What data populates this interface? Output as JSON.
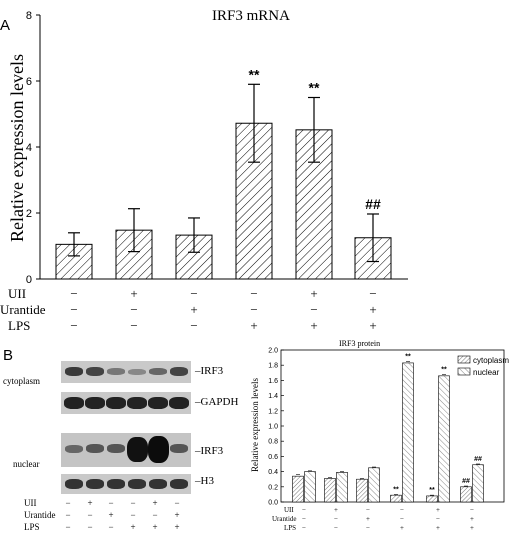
{
  "panel_a": {
    "letter": "A",
    "title": "IRF3 mRNA",
    "ylabel": "Relative expression levels",
    "yticks": [
      "0",
      "2",
      "4",
      "6",
      "8"
    ],
    "treatments": [
      {
        "label": "UII",
        "signs": [
          "−",
          "+",
          "−",
          "−",
          "+",
          "−"
        ]
      },
      {
        "label": "Urantide",
        "signs": [
          "−",
          "−",
          "+",
          "−",
          "−",
          "+"
        ]
      },
      {
        "label": "LPS",
        "signs": [
          "−",
          "−",
          "−",
          "+",
          "+",
          "+"
        ]
      }
    ],
    "significance": [
      "",
      "",
      "",
      "**",
      "**",
      "##"
    ]
  },
  "panel_b": {
    "letter": "B",
    "blot": {
      "row_labels": [
        "cytoplasm",
        "nuclear"
      ],
      "band_labels": [
        "–IRF3",
        "–GAPDH",
        "–IRF3",
        "–H3"
      ],
      "treatments": [
        {
          "label": "UII",
          "signs": [
            "−",
            "+",
            "−",
            "−",
            "+",
            "−"
          ]
        },
        {
          "label": "Urantide",
          "signs": [
            "−",
            "−",
            "+",
            "−",
            "−",
            "+"
          ]
        },
        {
          "label": "LPS",
          "signs": [
            "−",
            "−",
            "−",
            "+",
            "+",
            "+"
          ]
        }
      ]
    },
    "chart_title": "IRF3 protein",
    "ylabel": "Relative expression levels",
    "yticks": [
      "0.0",
      "0.2",
      "0.4",
      "0.6",
      "0.8",
      "1.0",
      "1.2",
      "1.4",
      "1.6",
      "1.8",
      "2.0"
    ],
    "legend": [
      "cytoplasm",
      "nuclear"
    ],
    "treatments": [
      {
        "label": "UII",
        "signs": [
          "−",
          "+",
          "−",
          "−",
          "+",
          "−"
        ]
      },
      {
        "label": "Urantide",
        "signs": [
          "−",
          "−",
          "+",
          "−",
          "−",
          "+"
        ]
      },
      {
        "label": "LPS",
        "signs": [
          "−",
          "−",
          "−",
          "+",
          "+",
          "+"
        ]
      }
    ],
    "sig_cyto": [
      "",
      "",
      "",
      "**",
      "**",
      "##"
    ],
    "sig_nuc": [
      "",
      "",
      "",
      "**",
      "**",
      "##"
    ]
  },
  "chart_data": [
    {
      "type": "bar",
      "title": "IRF3 mRNA",
      "ylabel": "Relative expression levels",
      "ylim": [
        0,
        8
      ],
      "categories": [
        "1",
        "2",
        "3",
        "4",
        "5",
        "6"
      ],
      "values": [
        1.05,
        1.48,
        1.33,
        4.72,
        4.52,
        1.25
      ],
      "errors": [
        0.35,
        0.65,
        0.52,
        1.18,
        0.98,
        0.72
      ],
      "hatch": true
    },
    {
      "type": "bar",
      "title": "IRF3 protein",
      "ylabel": "Relative expression levels",
      "ylim": [
        0,
        2.0
      ],
      "categories": [
        "1",
        "2",
        "3",
        "4",
        "5",
        "6"
      ],
      "series": [
        {
          "name": "cytoplasm",
          "values": [
            0.34,
            0.31,
            0.3,
            0.09,
            0.08,
            0.2
          ],
          "errors": [
            0.02,
            0.01,
            0.01,
            0.01,
            0.01,
            0.01
          ]
        },
        {
          "name": "nuclear",
          "values": [
            0.4,
            0.39,
            0.45,
            1.83,
            1.66,
            0.49
          ],
          "errors": [
            0.01,
            0.01,
            0.01,
            0.02,
            0.02,
            0.01
          ]
        }
      ],
      "legend_position": "top-right"
    }
  ]
}
